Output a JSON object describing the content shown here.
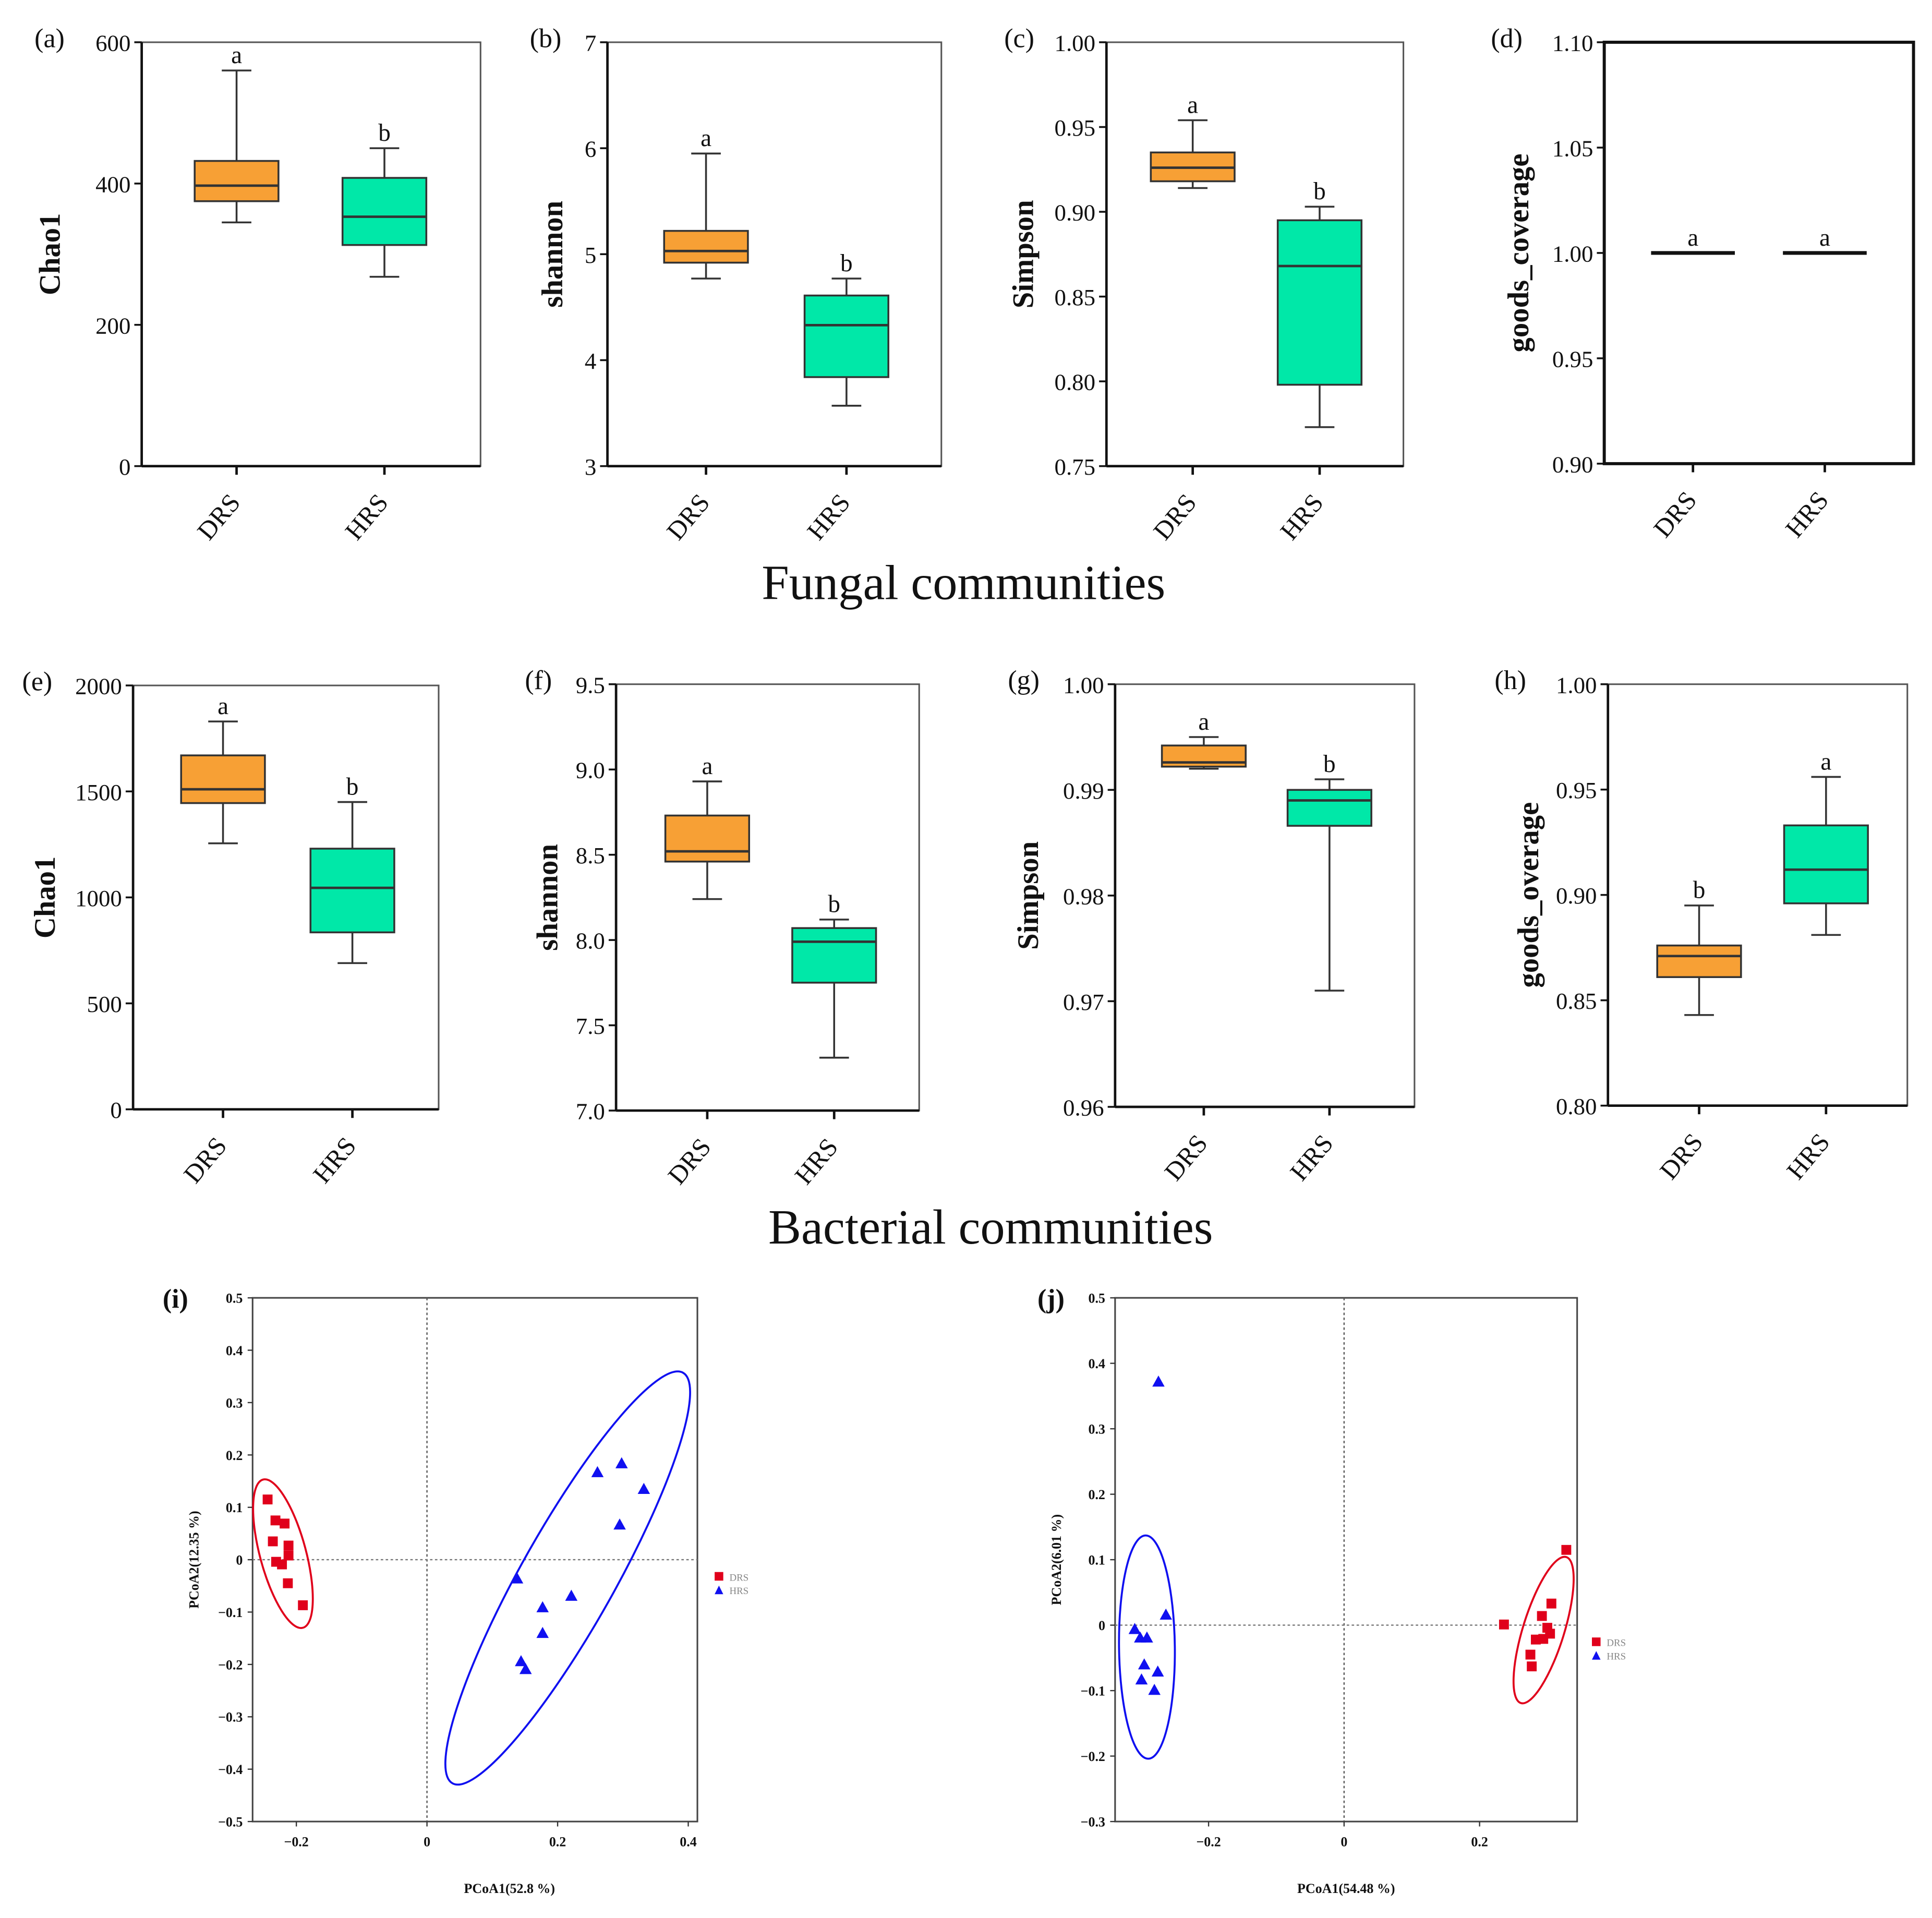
{
  "colors": {
    "drs_box": "#f7a035",
    "hrs_box": "#00e8a8",
    "drs_points": "#e0001b",
    "hrs_points": "#1010f0"
  },
  "section_titles": {
    "fungal": "Fungal communities",
    "bacterial": "Bacterial communities"
  },
  "chart_data": [
    {
      "panel": "(a)",
      "type": "box",
      "ylabel": "Chao1",
      "ylim": [
        0,
        600
      ],
      "yticks": [
        "0",
        "200",
        "400",
        "600"
      ],
      "ytick_values": [
        0,
        200,
        400,
        600
      ],
      "categories": [
        "DRS",
        "HRS"
      ],
      "stats": [
        {
          "min": 345,
          "q1": 375,
          "median": 397,
          "q3": 432,
          "max": 560,
          "letter": "a"
        },
        {
          "min": 268,
          "q1": 313,
          "median": 353,
          "q3": 408,
          "max": 450,
          "letter": "b"
        }
      ]
    },
    {
      "panel": "(b)",
      "type": "box",
      "ylabel": "shannon",
      "ylim": [
        3,
        7
      ],
      "yticks": [
        "3",
        "4",
        "5",
        "6",
        "7"
      ],
      "ytick_values": [
        3,
        4,
        5,
        6,
        7
      ],
      "categories": [
        "DRS",
        "HRS"
      ],
      "stats": [
        {
          "min": 4.77,
          "q1": 4.92,
          "median": 5.03,
          "q3": 5.22,
          "max": 5.95,
          "letter": "a"
        },
        {
          "min": 3.57,
          "q1": 3.84,
          "median": 4.33,
          "q3": 4.61,
          "max": 4.77,
          "letter": "b"
        }
      ]
    },
    {
      "panel": "(c)",
      "type": "box",
      "ylabel": "Simpson",
      "ylim": [
        0.75,
        1.0
      ],
      "yticks": [
        "0.75",
        "0.80",
        "0.85",
        "0.90",
        "0.95",
        "1.00"
      ],
      "ytick_values": [
        0.75,
        0.8,
        0.85,
        0.9,
        0.95,
        1.0
      ],
      "categories": [
        "DRS",
        "HRS"
      ],
      "stats": [
        {
          "min": 0.914,
          "q1": 0.918,
          "median": 0.926,
          "q3": 0.935,
          "max": 0.954,
          "letter": "a"
        },
        {
          "min": 0.773,
          "q1": 0.798,
          "median": 0.868,
          "q3": 0.895,
          "max": 0.903,
          "letter": "b"
        }
      ]
    },
    {
      "panel": "(d)",
      "type": "box",
      "ylabel": "goods_coverage",
      "ylim": [
        0.9,
        1.1
      ],
      "yticks": [
        "0.90",
        "0.95",
        "1.00",
        "1.05",
        "1.10"
      ],
      "ytick_values": [
        0.9,
        0.95,
        1.0,
        1.05,
        1.1
      ],
      "categories": [
        "DRS",
        "HRS"
      ],
      "stats": [
        {
          "min": 1.0,
          "q1": 1.0,
          "median": 1.0,
          "q3": 1.0,
          "max": 1.0,
          "letter": "a"
        },
        {
          "min": 1.0,
          "q1": 1.0,
          "median": 1.0,
          "q3": 1.0,
          "max": 1.0,
          "letter": "a"
        }
      ]
    },
    {
      "panel": "(e)",
      "type": "box",
      "ylabel": "Chao1",
      "ylim": [
        0,
        2000
      ],
      "yticks": [
        "0",
        "500",
        "1000",
        "1500",
        "2000"
      ],
      "ytick_values": [
        0,
        500,
        1000,
        1500,
        2000
      ],
      "categories": [
        "DRS",
        "HRS"
      ],
      "stats": [
        {
          "min": 1255,
          "q1": 1445,
          "median": 1510,
          "q3": 1670,
          "max": 1830,
          "letter": "a"
        },
        {
          "min": 690,
          "q1": 835,
          "median": 1045,
          "q3": 1230,
          "max": 1450,
          "letter": "b"
        }
      ]
    },
    {
      "panel": "(f)",
      "type": "box",
      "ylabel": "shannon",
      "ylim": [
        7.0,
        9.5
      ],
      "yticks": [
        "7.0",
        "7.5",
        "8.0",
        "8.5",
        "9.0",
        "9.5"
      ],
      "ytick_values": [
        7.0,
        7.5,
        8.0,
        8.5,
        9.0,
        9.5
      ],
      "categories": [
        "DRS",
        "HRS"
      ],
      "stats": [
        {
          "min": 8.24,
          "q1": 8.46,
          "median": 8.52,
          "q3": 8.73,
          "max": 8.93,
          "letter": "a"
        },
        {
          "min": 7.31,
          "q1": 7.75,
          "median": 7.99,
          "q3": 8.07,
          "max": 8.12,
          "letter": "b"
        }
      ]
    },
    {
      "panel": "(g)",
      "type": "box",
      "ylabel": "Simpson",
      "ylim": [
        0.96,
        1.0
      ],
      "yticks": [
        "0.96",
        "0.97",
        "0.98",
        "0.99",
        "1.00"
      ],
      "ytick_values": [
        0.96,
        0.97,
        0.98,
        0.99,
        1.0
      ],
      "categories": [
        "DRS",
        "HRS"
      ],
      "stats": [
        {
          "min": 0.992,
          "q1": 0.9922,
          "median": 0.9926,
          "q3": 0.9942,
          "max": 0.995,
          "letter": "a"
        },
        {
          "min": 0.971,
          "q1": 0.9866,
          "median": 0.989,
          "q3": 0.99,
          "max": 0.991,
          "letter": "b"
        }
      ]
    },
    {
      "panel": "(h)",
      "type": "box",
      "ylabel": "goods_overage",
      "ylim": [
        0.8,
        1.0
      ],
      "yticks": [
        "0.80",
        "0.85",
        "0.90",
        "0.95",
        "1.00"
      ],
      "ytick_values": [
        0.8,
        0.85,
        0.9,
        0.95,
        1.0
      ],
      "categories": [
        "DRS",
        "HRS"
      ],
      "stats": [
        {
          "min": 0.843,
          "q1": 0.861,
          "median": 0.871,
          "q3": 0.876,
          "max": 0.895,
          "letter": "b"
        },
        {
          "min": 0.881,
          "q1": 0.896,
          "median": 0.912,
          "q3": 0.933,
          "max": 0.956,
          "letter": "a"
        }
      ]
    },
    {
      "panel": "(i)",
      "type": "scatter",
      "xlabel": "PCoA1(52.8 %)",
      "ylabel": "PCoA2(12.35 %)",
      "xlim": [
        -0.267,
        0.414
      ],
      "ylim": [
        -0.5,
        0.5
      ],
      "xticks": [
        "−0.2",
        "0",
        "0.2",
        "0.4"
      ],
      "xtick_values": [
        -0.2,
        0,
        0.2,
        0.4
      ],
      "yticks": [
        "−0.5",
        "−0.4",
        "−0.3",
        "−0.2",
        "−0.1",
        "0",
        "0.1",
        "0.2",
        "0.3",
        "0.4",
        "0.5"
      ],
      "ytick_values": [
        -0.5,
        -0.4,
        -0.3,
        -0.2,
        -0.1,
        0,
        0.1,
        0.2,
        0.3,
        0.4,
        0.5
      ],
      "legend": [
        "DRS",
        "HRS"
      ],
      "legend_position": "right",
      "series": [
        {
          "name": "DRS",
          "marker": "square",
          "points": [
            [
              -0.244,
              0.115
            ],
            [
              -0.232,
              0.075
            ],
            [
              -0.218,
              0.069
            ],
            [
              -0.236,
              0.035
            ],
            [
              -0.212,
              0.027
            ],
            [
              -0.212,
              0.008
            ],
            [
              -0.231,
              -0.004
            ],
            [
              -0.222,
              -0.009
            ],
            [
              -0.213,
              -0.045
            ],
            [
              -0.19,
              -0.087
            ]
          ],
          "ellipse": {
            "major_axis": [
              [
                -0.251,
                0.153
              ],
              [
                -0.19,
                -0.13
              ]
            ],
            "minor_ratio": 0.3
          }
        },
        {
          "name": "HRS",
          "marker": "triangle",
          "points": [
            [
              0.261,
              0.167
            ],
            [
              0.298,
              0.184
            ],
            [
              0.332,
              0.135
            ],
            [
              0.295,
              0.067
            ],
            [
              0.138,
              -0.036
            ],
            [
              0.221,
              -0.069
            ],
            [
              0.177,
              -0.091
            ],
            [
              0.177,
              -0.14
            ],
            [
              0.144,
              -0.194
            ],
            [
              0.151,
              -0.209
            ]
          ],
          "ellipse": {
            "major_axis": [
              [
                0.392,
                0.357
              ],
              [
                0.039,
                -0.427
              ]
            ],
            "minor_ratio": 0.2
          }
        }
      ]
    },
    {
      "panel": "(j)",
      "type": "scatter",
      "xlabel": "PCoA1(54.48 %)",
      "ylabel": "PCoA2(6.01 %)",
      "xlim": [
        -0.338,
        0.344
      ],
      "ylim": [
        -0.3,
        0.5
      ],
      "xticks": [
        "−0.2",
        "0",
        "0.2"
      ],
      "xtick_values": [
        -0.2,
        0,
        0.2
      ],
      "yticks": [
        "−0.3",
        "−0.2",
        "−0.1",
        "0",
        "0.1",
        "0.2",
        "0.3",
        "0.4",
        "0.5"
      ],
      "ytick_values": [
        -0.3,
        -0.2,
        -0.1,
        0,
        0.1,
        0.2,
        0.3,
        0.4,
        0.5
      ],
      "legend": [
        "DRS",
        "HRS"
      ],
      "legend_position": "right",
      "series": [
        {
          "name": "DRS",
          "marker": "square",
          "points": [
            [
              0.328,
              0.115
            ],
            [
              0.236,
              0.001
            ],
            [
              0.306,
              0.033
            ],
            [
              0.292,
              0.014
            ],
            [
              0.3,
              -0.004
            ],
            [
              0.304,
              -0.013
            ],
            [
              0.283,
              -0.022
            ],
            [
              0.294,
              -0.021
            ],
            [
              0.275,
              -0.045
            ],
            [
              0.277,
              -0.063
            ]
          ],
          "ellipse": {
            "major_axis": [
              [
                0.328,
                0.104
              ],
              [
                0.261,
                -0.119
              ]
            ],
            "minor_ratio": 0.27
          }
        },
        {
          "name": "HRS",
          "marker": "triangle",
          "points": [
            [
              -0.274,
              0.372
            ],
            [
              -0.263,
              0.016
            ],
            [
              -0.309,
              -0.006
            ],
            [
              -0.301,
              -0.019
            ],
            [
              -0.291,
              -0.019
            ],
            [
              -0.295,
              -0.06
            ],
            [
              -0.275,
              -0.071
            ],
            [
              -0.299,
              -0.083
            ],
            [
              -0.28,
              -0.099
            ]
          ],
          "ellipse": {
            "major_axis": [
              [
                -0.293,
                0.137
              ],
              [
                -0.289,
                -0.204
              ]
            ],
            "minor_ratio": 0.25
          }
        }
      ]
    }
  ]
}
